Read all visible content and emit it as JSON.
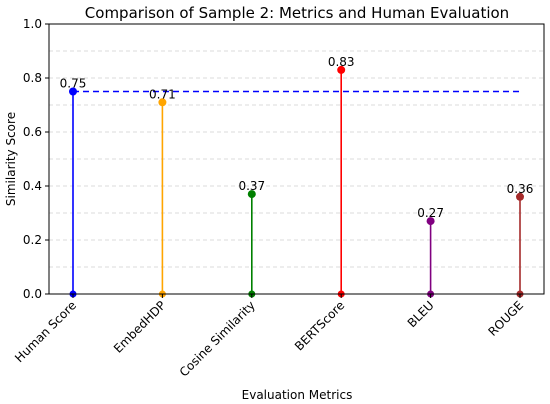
{
  "chart_data": {
    "type": "stem",
    "title": "Comparison of Sample 2: Metrics and Human Evaluation",
    "xlabel": "Evaluation Metrics",
    "ylabel": "Similarity Score",
    "ylim": [
      0.0,
      1.0
    ],
    "yticks": [
      "0.0",
      "0.2",
      "0.4",
      "0.6",
      "0.8",
      "1.0"
    ],
    "grid": "horizontal dashed",
    "categories": [
      "Human Score",
      "EmbedHDP",
      "Cosine Similarity",
      "BERTScore",
      "BLEU",
      "ROUGE"
    ],
    "values": [
      0.75,
      0.71,
      0.37,
      0.83,
      0.27,
      0.36
    ],
    "value_labels": [
      "0.75",
      "0.71",
      "0.37",
      "0.83",
      "0.27",
      "0.36"
    ],
    "colors": [
      "#0000ff",
      "#ffa500",
      "#008000",
      "#ff0000",
      "#800080",
      "#a52a2a"
    ],
    "reference_line": {
      "value": 0.75,
      "color": "#0000ff",
      "style": "dashed"
    }
  }
}
